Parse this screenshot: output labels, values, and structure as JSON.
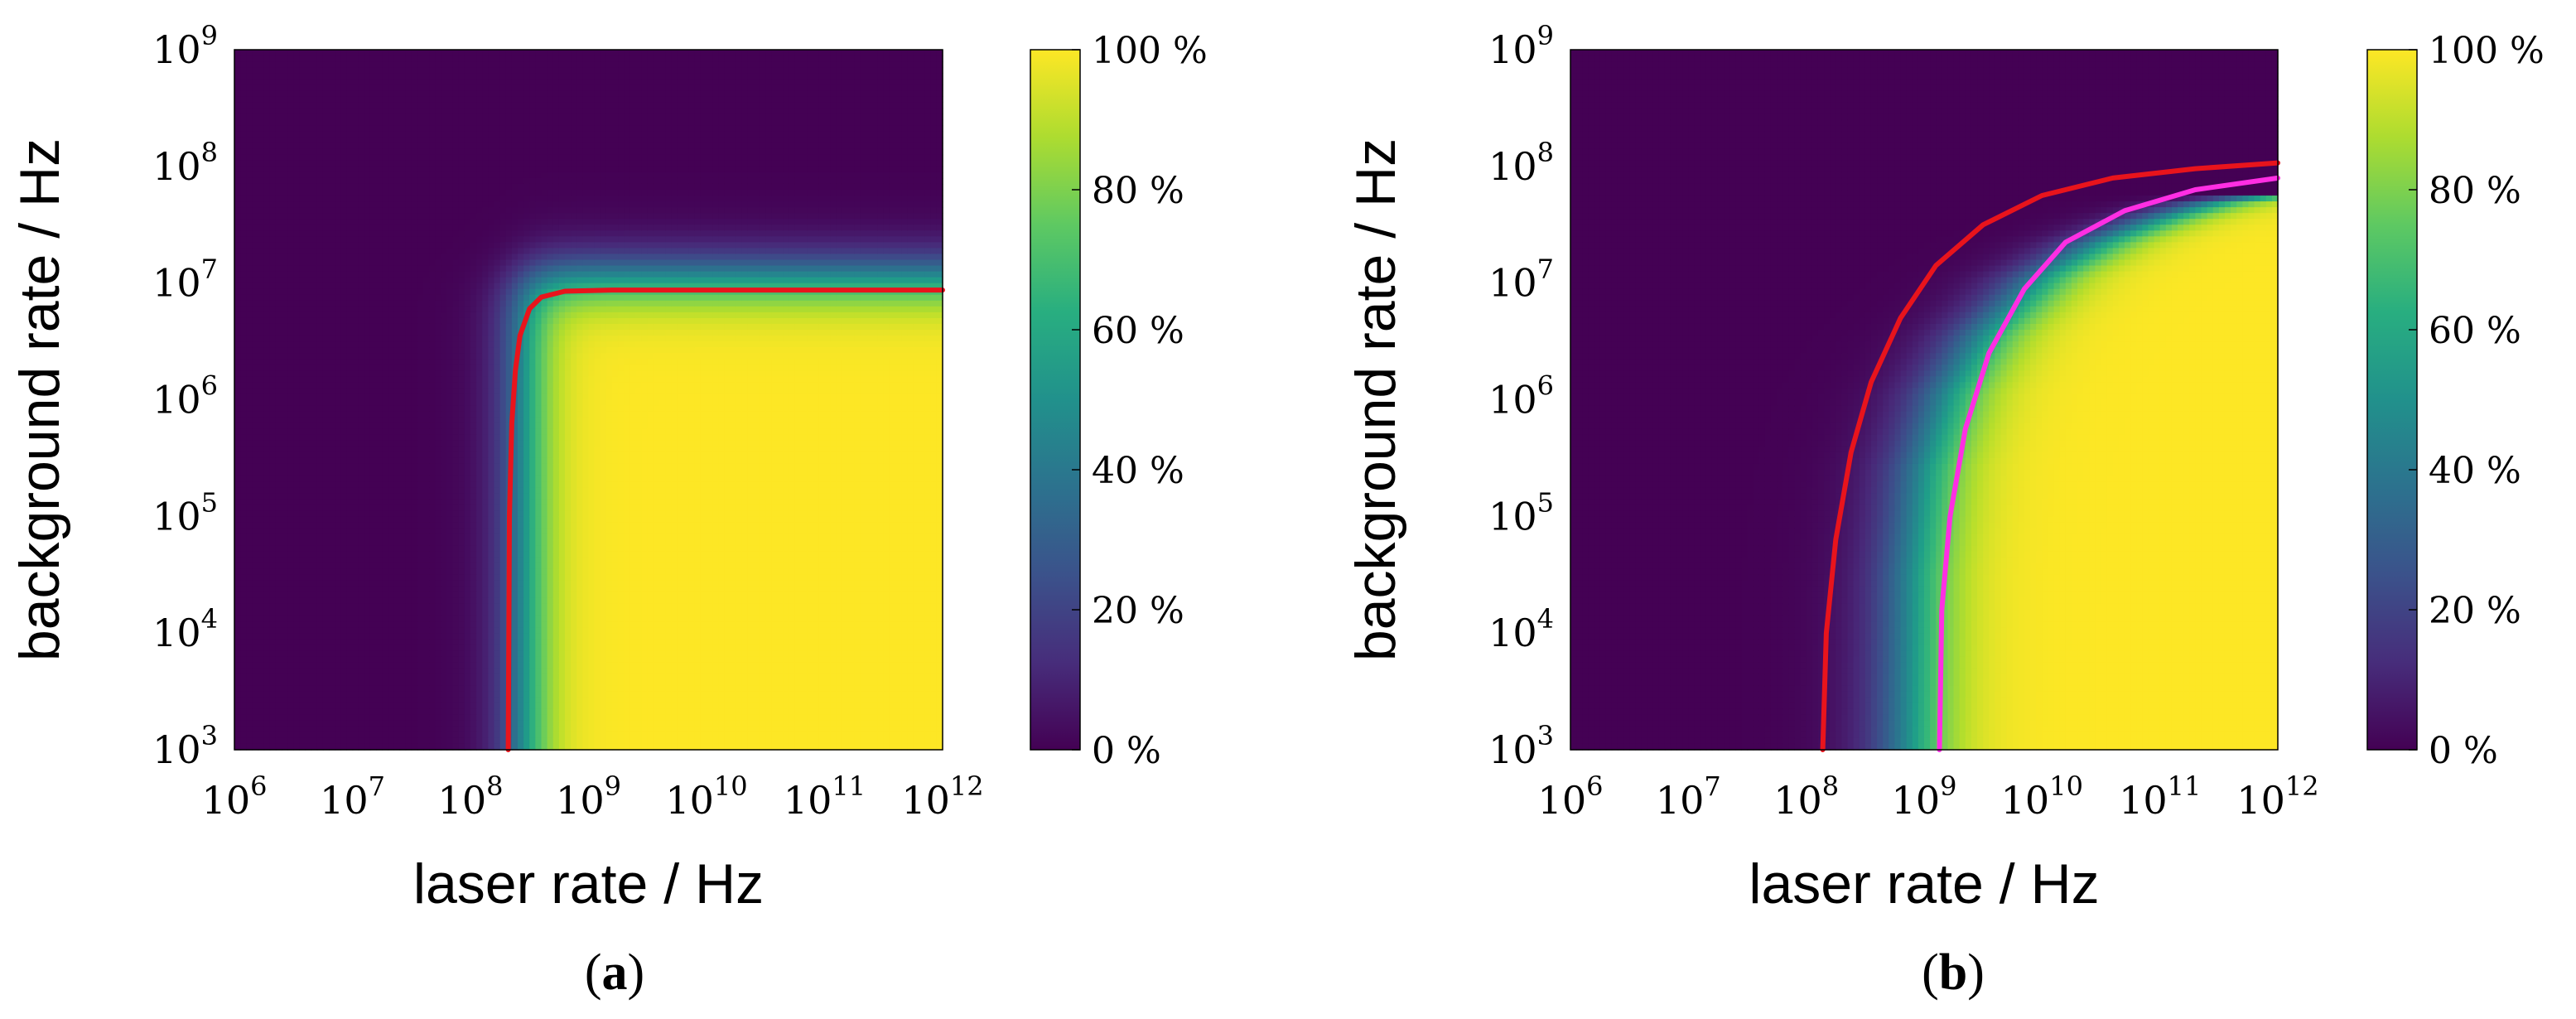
{
  "figure": {
    "caption_a": {
      "open": "(",
      "letter": "a",
      "close": ")"
    },
    "caption_b": {
      "open": "(",
      "letter": "b",
      "close": ")"
    }
  },
  "chart_data": [
    {
      "type": "heatmap",
      "panel": "a",
      "title": "",
      "xlabel": "laser rate / Hz",
      "ylabel": "background rate / Hz",
      "x_scale": "log",
      "y_scale": "log",
      "xlim": [
        1000000,
        1000000000000
      ],
      "ylim": [
        1000,
        1000000000
      ],
      "x_ticks": [
        {
          "value": 1000000,
          "base": "10",
          "exp": "6"
        },
        {
          "value": 10000000,
          "base": "10",
          "exp": "7"
        },
        {
          "value": 100000000,
          "base": "10",
          "exp": "8"
        },
        {
          "value": 1000000000,
          "base": "10",
          "exp": "9"
        },
        {
          "value": 10000000000,
          "base": "10",
          "exp": "10"
        },
        {
          "value": 100000000000,
          "base": "10",
          "exp": "11"
        },
        {
          "value": 1000000000000,
          "base": "10",
          "exp": "12"
        }
      ],
      "y_ticks": [
        {
          "value": 1000,
          "base": "10",
          "exp": "3"
        },
        {
          "value": 10000,
          "base": "10",
          "exp": "4"
        },
        {
          "value": 100000,
          "base": "10",
          "exp": "5"
        },
        {
          "value": 1000000,
          "base": "10",
          "exp": "6"
        },
        {
          "value": 10000000,
          "base": "10",
          "exp": "7"
        },
        {
          "value": 100000000,
          "base": "10",
          "exp": "8"
        },
        {
          "value": 1000000000,
          "base": "10",
          "exp": "9"
        }
      ],
      "colorbar": {
        "colormap": "viridis",
        "range_percent": [
          0,
          100
        ],
        "ticks": [
          {
            "value": 0,
            "label": "0 %"
          },
          {
            "value": 20,
            "label": "20 %"
          },
          {
            "value": 40,
            "label": "40 %"
          },
          {
            "value": 60,
            "label": "60 %"
          },
          {
            "value": 80,
            "label": "80 %"
          },
          {
            "value": 100,
            "label": "100 %"
          }
        ]
      },
      "field_model": {
        "kind": "saturating_corner",
        "x_threshold_log10": 8.45,
        "y_limit_log10": 7.05,
        "transition_width_log10": 0.14
      },
      "curves": [
        {
          "color": "#e8141c",
          "points": [
            [
              8.32,
              3.0
            ],
            [
              8.33,
              5.0
            ],
            [
              8.35,
              5.8
            ],
            [
              8.38,
              6.25
            ],
            [
              8.42,
              6.55
            ],
            [
              8.5,
              6.78
            ],
            [
              8.6,
              6.88
            ],
            [
              8.8,
              6.93
            ],
            [
              9.2,
              6.94
            ],
            [
              10.0,
              6.94
            ],
            [
              11.0,
              6.94
            ],
            [
              12.0,
              6.94
            ]
          ]
        }
      ]
    },
    {
      "type": "heatmap",
      "panel": "b",
      "title": "",
      "xlabel": "laser rate / Hz",
      "ylabel": "background rate / Hz",
      "x_scale": "log",
      "y_scale": "log",
      "xlim": [
        1000000,
        1000000000000
      ],
      "ylim": [
        1000,
        1000000000
      ],
      "x_ticks": [
        {
          "value": 1000000,
          "base": "10",
          "exp": "6"
        },
        {
          "value": 10000000,
          "base": "10",
          "exp": "7"
        },
        {
          "value": 100000000,
          "base": "10",
          "exp": "8"
        },
        {
          "value": 1000000000,
          "base": "10",
          "exp": "9"
        },
        {
          "value": 10000000000,
          "base": "10",
          "exp": "10"
        },
        {
          "value": 100000000000,
          "base": "10",
          "exp": "11"
        },
        {
          "value": 1000000000000,
          "base": "10",
          "exp": "12"
        }
      ],
      "y_ticks": [
        {
          "value": 1000,
          "base": "10",
          "exp": "3"
        },
        {
          "value": 10000,
          "base": "10",
          "exp": "4"
        },
        {
          "value": 100000,
          "base": "10",
          "exp": "5"
        },
        {
          "value": 1000000,
          "base": "10",
          "exp": "6"
        },
        {
          "value": 10000000,
          "base": "10",
          "exp": "7"
        },
        {
          "value": 100000000,
          "base": "10",
          "exp": "8"
        },
        {
          "value": 1000000000,
          "base": "10",
          "exp": "9"
        }
      ],
      "colorbar": {
        "colormap": "viridis",
        "range_percent": [
          0,
          100
        ],
        "ticks": [
          {
            "value": 0,
            "label": "0 %"
          },
          {
            "value": 20,
            "label": "20 %"
          },
          {
            "value": 40,
            "label": "40 %"
          },
          {
            "value": 60,
            "label": "60 %"
          },
          {
            "value": 80,
            "label": "80 %"
          },
          {
            "value": 100,
            "label": "100 %"
          }
        ]
      },
      "field_model": {
        "kind": "curve_boundary",
        "boundary": [
          [
            8.87,
            3.0
          ],
          [
            8.9,
            4.5
          ],
          [
            9.0,
            5.4
          ],
          [
            9.2,
            6.05
          ],
          [
            9.5,
            6.55
          ],
          [
            10.0,
            7.05
          ],
          [
            10.5,
            7.35
          ],
          [
            11.0,
            7.55
          ],
          [
            11.5,
            7.7
          ],
          [
            12.0,
            7.75
          ]
        ],
        "transition_width_log10": 0.22
      },
      "curves": [
        {
          "color": "#e8141c",
          "points": [
            [
              8.14,
              3.0
            ],
            [
              8.17,
              4.0
            ],
            [
              8.25,
              4.8
            ],
            [
              8.38,
              5.55
            ],
            [
              8.55,
              6.15
            ],
            [
              8.8,
              6.7
            ],
            [
              9.1,
              7.15
            ],
            [
              9.5,
              7.5
            ],
            [
              10.0,
              7.75
            ],
            [
              10.6,
              7.9
            ],
            [
              11.3,
              7.98
            ],
            [
              12.0,
              8.03
            ]
          ]
        },
        {
          "color": "#ff2ee3",
          "points": [
            [
              9.13,
              3.0
            ],
            [
              9.15,
              4.2
            ],
            [
              9.22,
              5.0
            ],
            [
              9.35,
              5.75
            ],
            [
              9.55,
              6.4
            ],
            [
              9.85,
              6.95
            ],
            [
              10.2,
              7.35
            ],
            [
              10.7,
              7.62
            ],
            [
              11.3,
              7.8
            ],
            [
              12.0,
              7.9
            ]
          ]
        }
      ]
    }
  ]
}
